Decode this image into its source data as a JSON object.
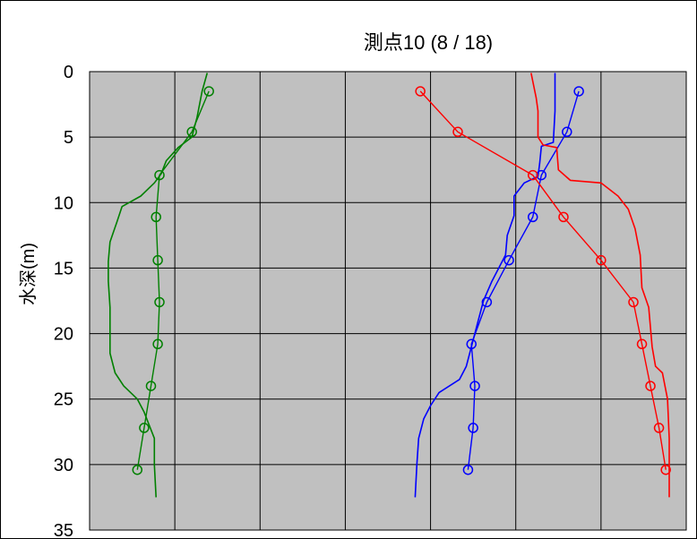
{
  "chart_data": {
    "type": "line",
    "title": "測点10 (8 / 18)",
    "xlabel": "",
    "ylabel": "水深(m)",
    "xlim": [
      0,
      35
    ],
    "ylim": [
      35,
      0
    ],
    "y_inverted": true,
    "xticks": [
      "0",
      "5",
      "10",
      "15",
      "20",
      "25",
      "30",
      "35"
    ],
    "yticks": [
      "0",
      "5",
      "10",
      "15",
      "20",
      "25",
      "30",
      "35"
    ],
    "grid": true,
    "plot_background": "#C0C0C0",
    "legend": "none",
    "series": [
      {
        "color": "#008000",
        "style": "continuous",
        "points": [
          [
            6.9,
            0.1
          ],
          [
            6.6,
            1.5
          ],
          [
            6.3,
            3.5
          ],
          [
            6.0,
            5.0
          ],
          [
            5.2,
            5.8
          ],
          [
            4.5,
            6.8
          ],
          [
            4.2,
            7.8
          ],
          [
            3.8,
            8.5
          ],
          [
            3.0,
            9.5
          ],
          [
            1.9,
            10.3
          ],
          [
            1.6,
            11.5
          ],
          [
            1.2,
            13.0
          ],
          [
            1.1,
            14.5
          ],
          [
            1.1,
            16.0
          ],
          [
            1.2,
            18.0
          ],
          [
            1.2,
            20.0
          ],
          [
            1.2,
            21.5
          ],
          [
            1.5,
            23.0
          ],
          [
            2.0,
            24.0
          ],
          [
            2.8,
            25.0
          ],
          [
            3.2,
            26.0
          ],
          [
            3.5,
            27.0
          ],
          [
            3.8,
            28.0
          ],
          [
            3.8,
            30.0
          ],
          [
            3.9,
            32.5
          ]
        ]
      },
      {
        "color": "#008000",
        "style": "sampled",
        "marker": "circle",
        "points": [
          [
            7.0,
            1.5
          ],
          [
            6.0,
            4.6
          ],
          [
            4.1,
            7.9
          ],
          [
            3.9,
            11.1
          ],
          [
            4.0,
            14.4
          ],
          [
            4.1,
            17.6
          ],
          [
            4.0,
            20.8
          ],
          [
            3.6,
            24.0
          ],
          [
            3.2,
            27.2
          ],
          [
            2.8,
            30.4
          ]
        ]
      },
      {
        "color": "#0000FF",
        "style": "continuous",
        "points": [
          [
            27.3,
            0.1
          ],
          [
            27.3,
            3.0
          ],
          [
            27.2,
            5.4
          ],
          [
            26.5,
            5.7
          ],
          [
            26.4,
            7.0
          ],
          [
            26.3,
            8.0
          ],
          [
            25.5,
            8.5
          ],
          [
            24.9,
            9.5
          ],
          [
            24.9,
            11.0
          ],
          [
            24.5,
            12.5
          ],
          [
            24.4,
            14.0
          ],
          [
            23.6,
            16.0
          ],
          [
            23.1,
            17.5
          ],
          [
            22.7,
            19.5
          ],
          [
            22.4,
            21.0
          ],
          [
            22.1,
            22.5
          ],
          [
            21.7,
            23.5
          ],
          [
            20.5,
            24.5
          ],
          [
            20.0,
            25.5
          ],
          [
            19.6,
            26.5
          ],
          [
            19.3,
            28.0
          ],
          [
            19.2,
            30.0
          ],
          [
            19.1,
            32.5
          ]
        ]
      },
      {
        "color": "#0000FF",
        "style": "sampled",
        "marker": "circle",
        "points": [
          [
            28.7,
            1.5
          ],
          [
            28.0,
            4.6
          ],
          [
            26.5,
            7.9
          ],
          [
            26.0,
            11.1
          ],
          [
            24.6,
            14.4
          ],
          [
            23.3,
            17.6
          ],
          [
            22.4,
            20.8
          ],
          [
            22.6,
            24.0
          ],
          [
            22.5,
            27.2
          ],
          [
            22.2,
            30.4
          ]
        ]
      },
      {
        "color": "#FF0000",
        "style": "continuous",
        "points": [
          [
            25.9,
            0.1
          ],
          [
            26.2,
            2.0
          ],
          [
            26.3,
            3.0
          ],
          [
            26.3,
            5.0
          ],
          [
            26.6,
            5.6
          ],
          [
            27.4,
            5.8
          ],
          [
            27.5,
            7.5
          ],
          [
            28.2,
            8.3
          ],
          [
            30.0,
            8.5
          ],
          [
            31.0,
            9.5
          ],
          [
            31.6,
            10.5
          ],
          [
            32.0,
            12.0
          ],
          [
            32.3,
            14.0
          ],
          [
            32.4,
            16.5
          ],
          [
            32.8,
            18.0
          ],
          [
            33.0,
            21.0
          ],
          [
            33.2,
            22.5
          ],
          [
            33.6,
            23.0
          ],
          [
            33.9,
            25.0
          ],
          [
            34.0,
            28.0
          ],
          [
            34.0,
            32.5
          ]
        ]
      },
      {
        "color": "#FF0000",
        "style": "sampled",
        "marker": "circle",
        "points": [
          [
            19.4,
            1.5
          ],
          [
            21.6,
            4.6
          ],
          [
            26.0,
            7.9
          ],
          [
            27.8,
            11.1
          ],
          [
            30.0,
            14.4
          ],
          [
            31.9,
            17.6
          ],
          [
            32.4,
            20.8
          ],
          [
            32.9,
            24.0
          ],
          [
            33.4,
            27.2
          ],
          [
            33.8,
            30.4
          ]
        ]
      }
    ]
  }
}
